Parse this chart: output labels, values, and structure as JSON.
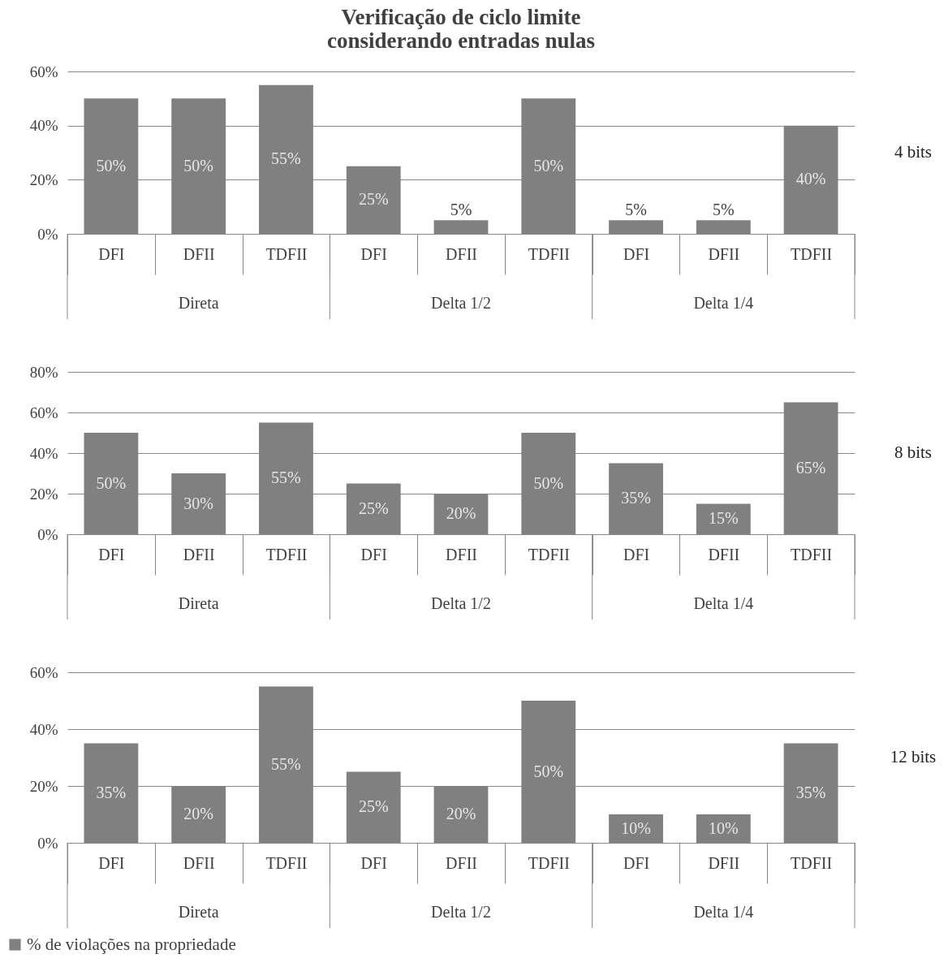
{
  "chart_data": [
    {
      "type": "bar",
      "title": "Verificação de ciclo limite considerando entradas nulas",
      "y2label": "4 bits",
      "categories": [
        "DFI",
        "DFII",
        "TDFII",
        "DFI",
        "DFII",
        "TDFII",
        "DFI",
        "DFII",
        "TDFII"
      ],
      "annotations": [
        "Direta",
        "Delta 1/2",
        "Delta 1/4"
      ],
      "ylim": [
        0,
        60
      ],
      "yticks": [
        {
          "value": 0,
          "label": "0%"
        },
        {
          "value": 20,
          "label": "20%"
        },
        {
          "value": 40,
          "label": "40%"
        },
        {
          "value": 60,
          "label": "60%"
        }
      ],
      "grid": "y",
      "series": [
        {
          "color": "#808080",
          "values": [
            50,
            50,
            55,
            25,
            5,
            50,
            5,
            5,
            40
          ],
          "value_labels": [
            "50%",
            "50%",
            "55%",
            "25%",
            "5%",
            "50%",
            "5%",
            "5%",
            "40%"
          ]
        }
      ]
    },
    {
      "type": "bar",
      "y2label": "8 bits",
      "categories": [
        "DFI",
        "DFII",
        "TDFII",
        "DFI",
        "DFII",
        "TDFII",
        "DFI",
        "DFII",
        "TDFII"
      ],
      "annotations": [
        "Direta",
        "Delta 1/2",
        "Delta 1/4"
      ],
      "ylim": [
        0,
        80
      ],
      "yticks": [
        {
          "value": 0,
          "label": "0%"
        },
        {
          "value": 20,
          "label": "20%"
        },
        {
          "value": 40,
          "label": "40%"
        },
        {
          "value": 60,
          "label": "60%"
        },
        {
          "value": 80,
          "label": "80%"
        }
      ],
      "grid": "y",
      "series": [
        {
          "color": "#808080",
          "values": [
            50,
            30,
            55,
            25,
            20,
            50,
            35,
            15,
            65
          ],
          "value_labels": [
            "50%",
            "30%",
            "55%",
            "25%",
            "20%",
            "50%",
            "35%",
            "15%",
            "65%"
          ]
        }
      ]
    },
    {
      "type": "bar",
      "y2label": "12 bits",
      "categories": [
        "DFI",
        "DFII",
        "TDFII",
        "DFI",
        "DFII",
        "TDFII",
        "DFI",
        "DFII",
        "TDFII"
      ],
      "annotations": [
        "Direta",
        "Delta 1/2",
        "Delta 1/4"
      ],
      "ylim": [
        0,
        60
      ],
      "yticks": [
        {
          "value": 0,
          "label": "0%"
        },
        {
          "value": 20,
          "label": "20%"
        },
        {
          "value": 40,
          "label": "40%"
        },
        {
          "value": 60,
          "label": "60%"
        }
      ],
      "grid": "y",
      "legend": "bottom left",
      "series": [
        {
          "name": "% de violações na propriedade",
          "color": "#808080",
          "values": [
            35,
            20,
            55,
            25,
            20,
            50,
            10,
            10,
            35
          ],
          "value_labels": [
            "35%",
            "20%",
            "55%",
            "25%",
            "20%",
            "50%",
            "10%",
            "10%",
            "35%"
          ]
        }
      ]
    }
  ]
}
